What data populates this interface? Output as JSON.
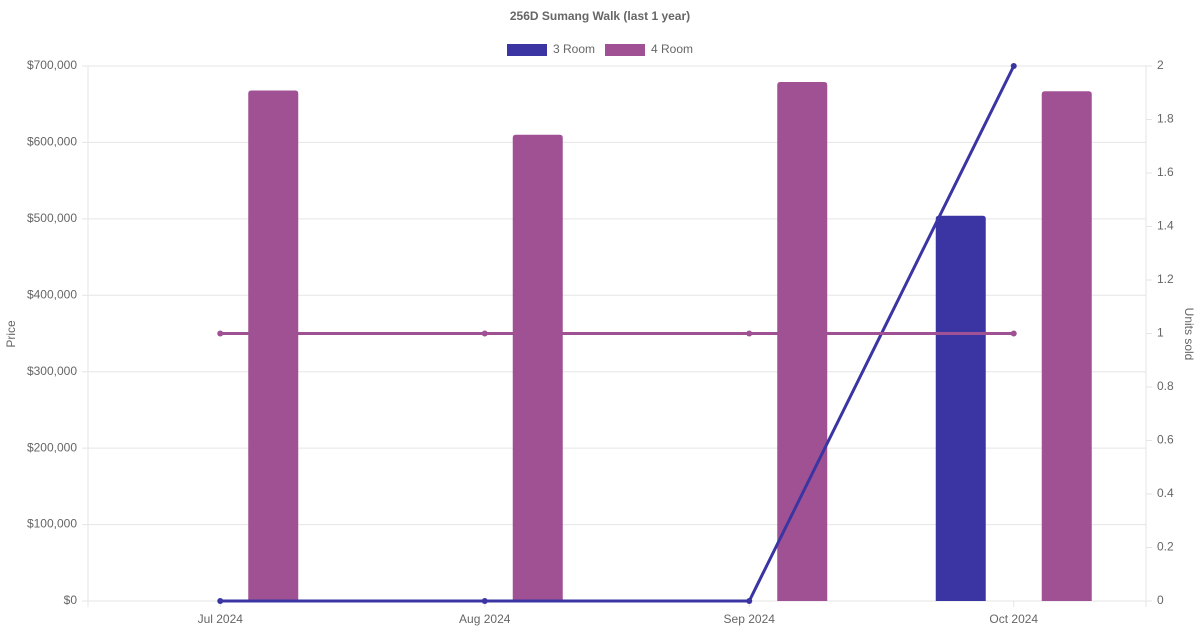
{
  "chart_data": {
    "type": "bar-line",
    "title": "256D Sumang Walk (last 1 year)",
    "categories": [
      "Jul 2024",
      "Aug 2024",
      "Sep 2024",
      "Oct 2024"
    ],
    "y_label": "Price",
    "y2_label": "Units sold",
    "ylim": [
      0,
      700000
    ],
    "yticks": [
      {
        "value": 0,
        "label": "$0"
      },
      {
        "value": 100000,
        "label": "$100,000"
      },
      {
        "value": 200000,
        "label": "$200,000"
      },
      {
        "value": 300000,
        "label": "$300,000"
      },
      {
        "value": 400000,
        "label": "$400,000"
      },
      {
        "value": 500000,
        "label": "$500,000"
      },
      {
        "value": 600000,
        "label": "$600,000"
      },
      {
        "value": 700000,
        "label": "$700,000"
      }
    ],
    "y2lim": [
      0,
      2
    ],
    "y2ticks": [
      0,
      0.2,
      0.4,
      0.6,
      0.8,
      1,
      1.2,
      1.4,
      1.6,
      1.8,
      2
    ],
    "grid": true,
    "legend": "top",
    "series": [
      {
        "name": "3 Room",
        "color": "#3a35a3",
        "values": [
          null,
          null,
          null,
          504000
        ],
        "units": [
          0,
          0,
          0,
          2
        ]
      },
      {
        "name": "4 Room",
        "color": "#a05194",
        "values": [
          668000,
          610000,
          679000,
          667000
        ],
        "units": [
          1,
          1,
          1,
          1
        ]
      }
    ]
  }
}
